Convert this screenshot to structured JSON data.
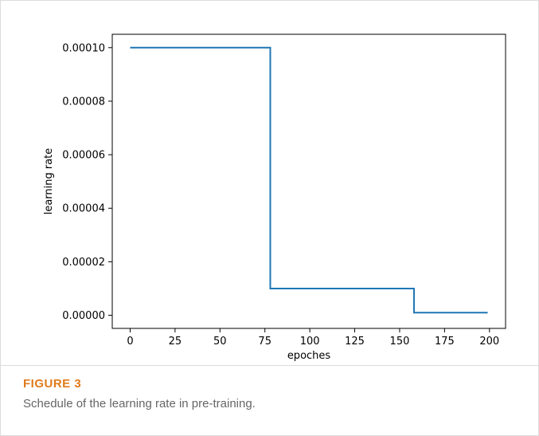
{
  "caption": {
    "label": "FIGURE 3",
    "text": "Schedule of the learning rate in pre-training."
  },
  "chart_data": {
    "type": "line",
    "title": "",
    "xlabel": "epoches",
    "ylabel": "learning rate",
    "xlim": [
      -9.95,
      208.95
    ],
    "ylim": [
      -4.9e-06,
      0.000105
    ],
    "xticks": [
      0,
      25,
      50,
      75,
      100,
      125,
      150,
      175,
      200
    ],
    "xtick_labels": [
      "0",
      "25",
      "50",
      "75",
      "100",
      "125",
      "150",
      "175",
      "200"
    ],
    "yticks": [
      0,
      2e-05,
      4e-05,
      6e-05,
      8e-05,
      0.0001
    ],
    "ytick_labels": [
      "0.00000",
      "0.00002",
      "0.00004",
      "0.00006",
      "0.00008",
      "0.00010"
    ],
    "grid": false,
    "legend": "none",
    "series": [
      {
        "color": "#1f77b4",
        "step": "post",
        "x": [
          0,
          78,
          158,
          199
        ],
        "y": [
          0.0001,
          1e-05,
          1e-06,
          1e-06
        ]
      }
    ]
  }
}
